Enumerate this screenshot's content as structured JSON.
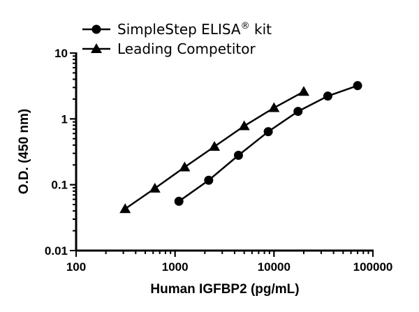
{
  "chart_data": {
    "type": "line",
    "xlabel": "Human IGFBP2 (pg/mL)",
    "ylabel": "O.D. (450 nm)",
    "xscale": "log",
    "yscale": "log",
    "xlim": [
      100,
      100000
    ],
    "ylim": [
      0.01,
      10
    ],
    "xticks": [
      "100",
      "1000",
      "10000",
      "100000"
    ],
    "yticks": [
      "0.01",
      "0.1",
      "1",
      "10"
    ],
    "grid": false,
    "legend_position": "top",
    "series": [
      {
        "name": "SimpleStep ELISA® kit",
        "marker": "circle",
        "x": [
          1094,
          2188,
          4375,
          8750,
          17500,
          35000,
          70000
        ],
        "y": [
          0.056,
          0.117,
          0.28,
          0.64,
          1.3,
          2.22,
          3.2
        ]
      },
      {
        "name": "Leading Competitor",
        "marker": "triangle",
        "x": [
          313,
          625,
          1250,
          2500,
          5000,
          10000,
          20000
        ],
        "y": [
          0.043,
          0.088,
          0.185,
          0.38,
          0.78,
          1.47,
          2.6
        ]
      }
    ]
  }
}
